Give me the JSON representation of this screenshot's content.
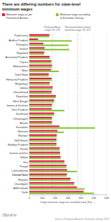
{
  "chart_data": {
    "type": "bar",
    "orientation": "horizontal",
    "title": "There are differing numbers for state-level\nminimum wages",
    "x_label": "Daily minimum wage for unskilled work (Rs) →",
    "categories": [
      "Puducherry",
      "Andhra Pradesh",
      "Telangana",
      "Gujarat",
      "Nagaland",
      "Arunachal Pradesh",
      "Tripura",
      "Maharashtra",
      "Bihar",
      "Tamil Nadu",
      "Himachal Pradesh",
      "Meghalaya",
      "Odisha",
      "Uttarakhand",
      "Rajasthan",
      "West Bengal",
      "Jammu & Kashmir",
      "Uttar Pradesh",
      "Jharkhand",
      "Chhattisgarh",
      "Assam",
      "Karnataka",
      "Mizoram",
      "Manipur",
      "D&N Haveli",
      "Madhya Pradesh",
      "Kerala",
      "Daman and Diu",
      "Sikkim",
      "Goa",
      "Punjab",
      "Lakshadweep",
      "Central Govt",
      "Haryana",
      "Chandigarh",
      "A&N Islands",
      "Delhi"
    ],
    "series": [
      {
        "name": "Minimum wage as per\nParliament Answer",
        "color": "#e8174b",
        "values": [
          155,
          67,
          108,
          118,
          115,
          158,
          170,
          175,
          168,
          150,
          172,
          158,
          180,
          172,
          205,
          192,
          175,
          172,
          192,
          175,
          175,
          232,
          218,
          212,
          210,
          210,
          235,
          238,
          242,
          272,
          288,
          292,
          290,
          318,
          348,
          368,
          420
        ]
      },
      {
        "name": "Minimum wage according\nto Economic Survey",
        "color": "#8dc63f",
        "values": [
          155,
          328,
          302,
          308,
          115,
          158,
          170,
          175,
          228,
          150,
          172,
          158,
          180,
          172,
          205,
          192,
          175,
          272,
          192,
          175,
          175,
          508,
          268,
          212,
          210,
          210,
          235,
          238,
          242,
          272,
          288,
          368,
          290,
          318,
          348,
          428,
          500
        ]
      }
    ],
    "xlim": [
      0,
      600
    ],
    "xticks": [
      0,
      100,
      200,
      300,
      400,
      500,
      600
    ],
    "grid": true,
    "legend": "upper left",
    "annotations": [
      {
        "x": 178,
        "text": "Proposed Base\nwage: Rs 178"
      },
      {
        "x": 375,
        "text": "Recommended national\nminimum wage: Rs 375"
      }
    ],
    "logo": "ƒScroll.in",
    "footer": "Source: Parliament Answers, Economic Survey 2019"
  }
}
